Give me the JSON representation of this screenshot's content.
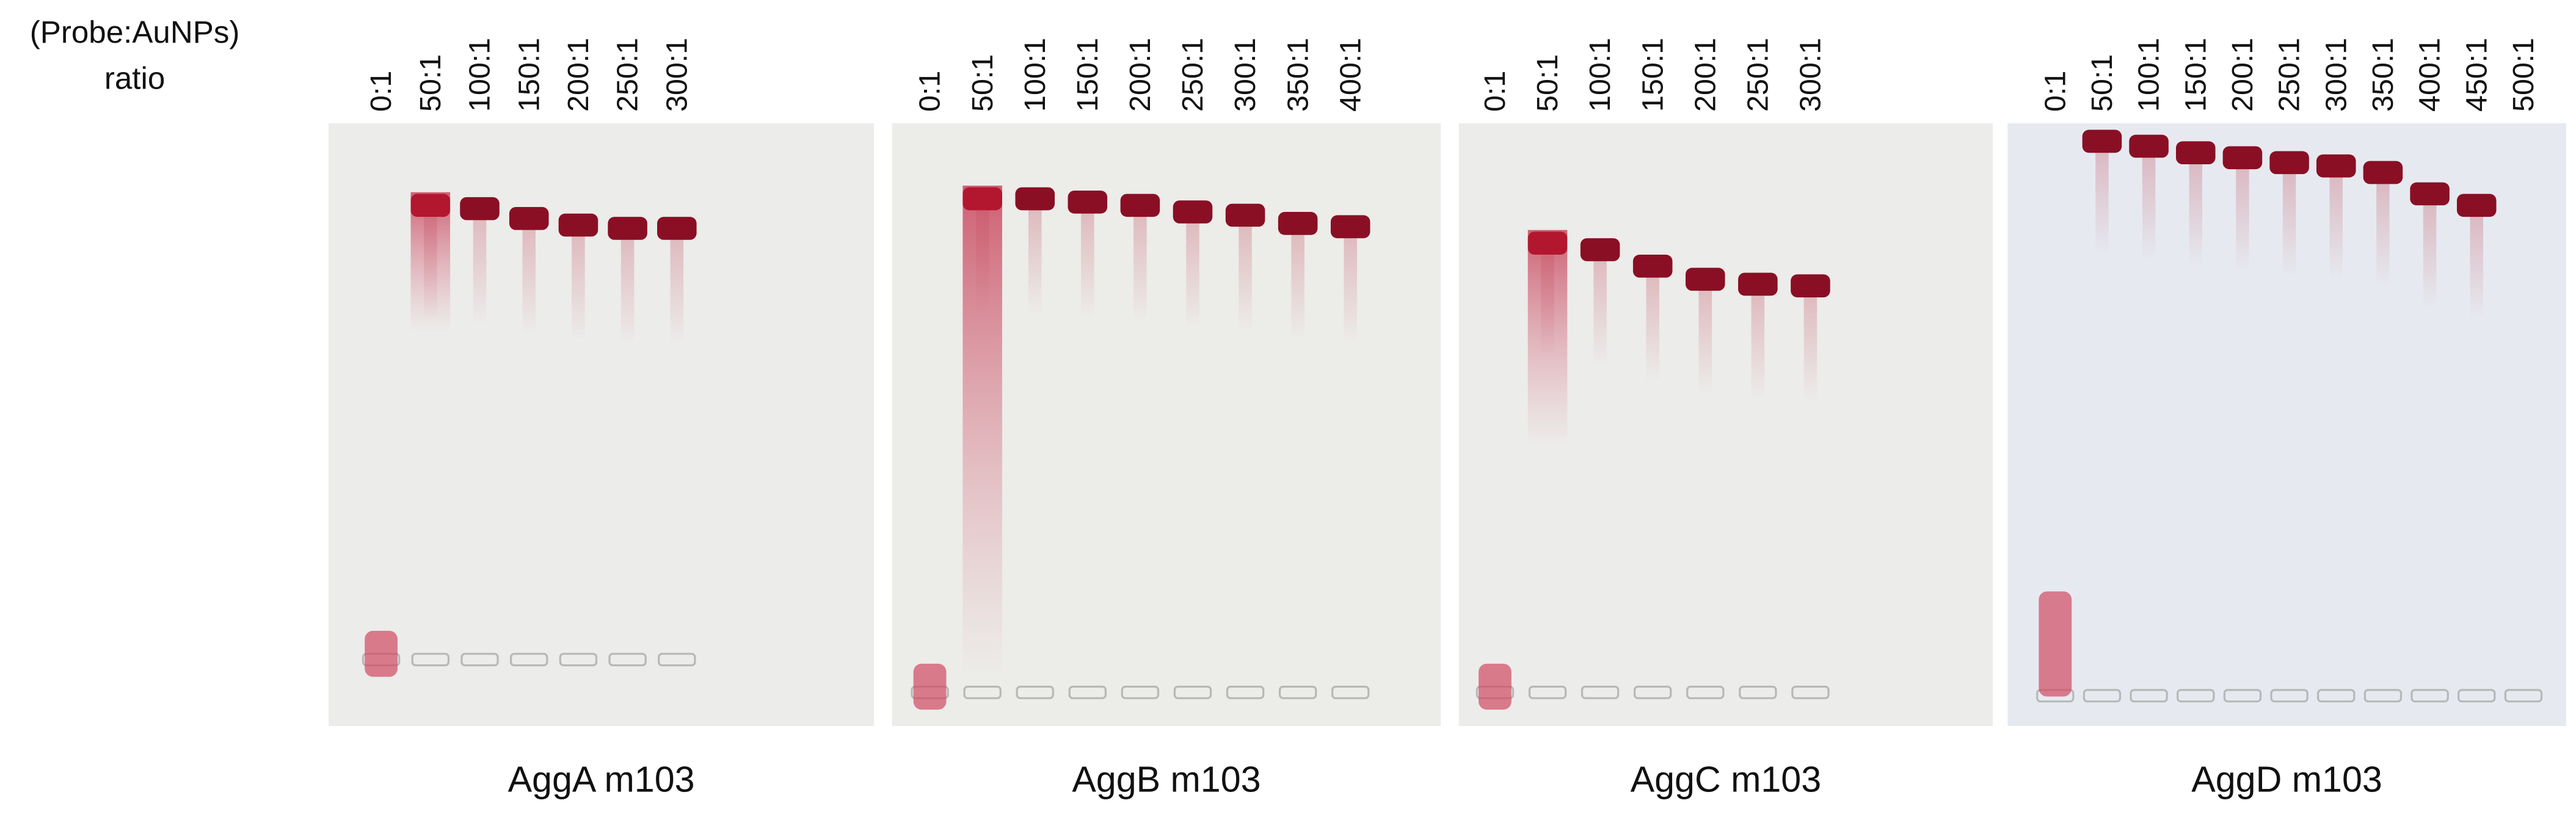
{
  "row_label": [
    "(Probe:AuNPs)",
    "ratio"
  ],
  "gels": [
    {
      "caption": "AggA m103",
      "lanes": [
        "0:1",
        "50:1",
        "100:1",
        "150:1",
        "200:1",
        "250:1",
        "300:1"
      ]
    },
    {
      "caption": "AggB m103",
      "lanes": [
        "0:1",
        "50:1",
        "100:1",
        "150:1",
        "200:1",
        "250:1",
        "300:1",
        "350:1",
        "400:1"
      ]
    },
    {
      "caption": "AggC m103",
      "lanes": [
        "0:1",
        "50:1",
        "100:1",
        "150:1",
        "200:1",
        "250:1",
        "300:1"
      ]
    },
    {
      "caption": "AggD m103",
      "lanes": [
        "0:1",
        "50:1",
        "100:1",
        "150:1",
        "200:1",
        "250:1",
        "300:1",
        "350:1",
        "400:1",
        "450:1",
        "500:1"
      ]
    }
  ]
}
